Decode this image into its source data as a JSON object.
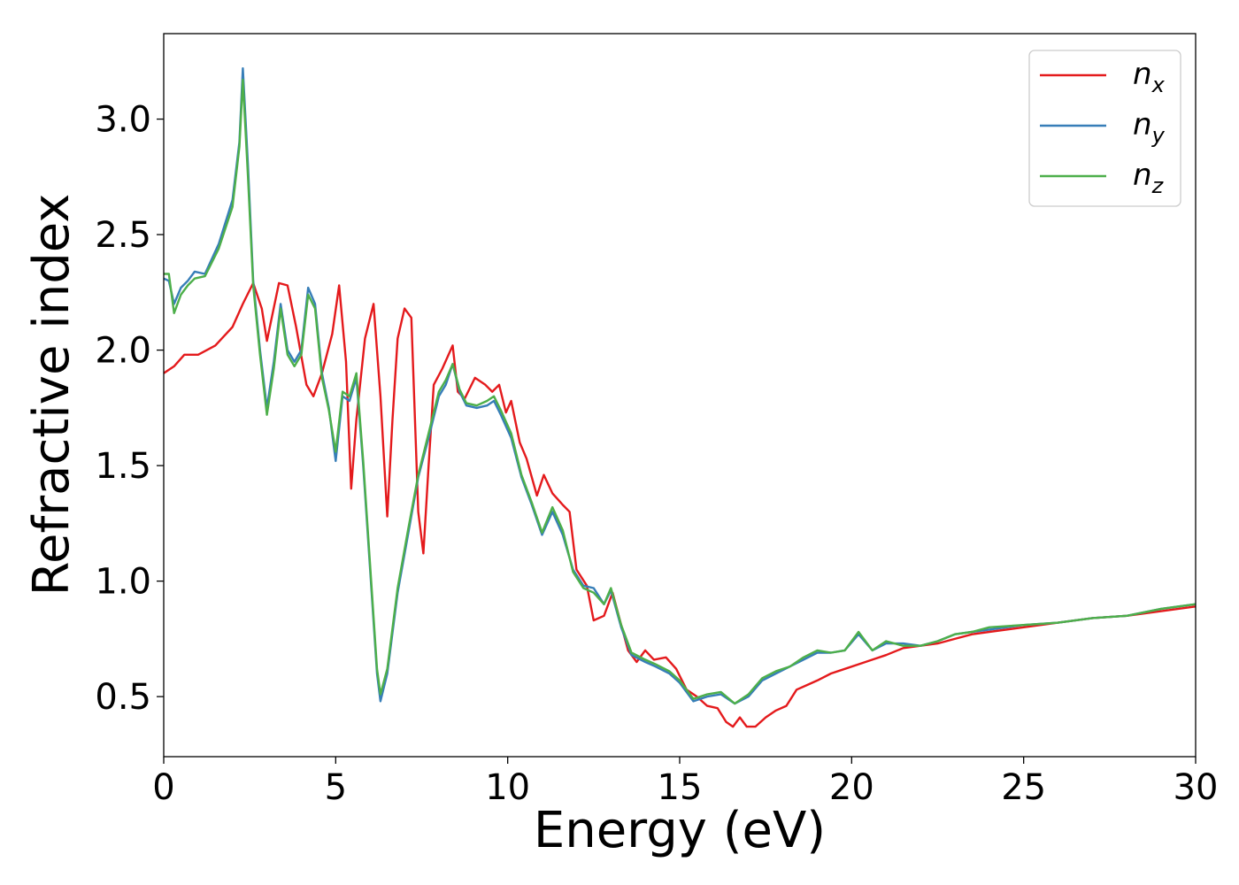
{
  "chart_data": {
    "type": "line",
    "title": "",
    "xlabel": "Energy (eV)",
    "ylabel": "Refractive index",
    "xlim": [
      0,
      30
    ],
    "ylim": [
      0.24,
      3.37
    ],
    "xticks": [
      0,
      5,
      10,
      15,
      20,
      25,
      30
    ],
    "xtick_labels": [
      "0",
      "5",
      "10",
      "15",
      "20",
      "25",
      "30"
    ],
    "yticks": [
      0.5,
      1.0,
      1.5,
      2.0,
      2.5,
      3.0
    ],
    "ytick_labels": [
      "0.5",
      "1.0",
      "1.5",
      "2.0",
      "2.5",
      "3.0"
    ],
    "grid": false,
    "legend_position": "top-right",
    "series": [
      {
        "name": "n_x",
        "legend_base": "n",
        "legend_sub": "x",
        "color": "#e41a1c",
        "x": [
          0,
          0.3,
          0.6,
          1.0,
          1.5,
          2.0,
          2.3,
          2.6,
          2.85,
          3.0,
          3.35,
          3.6,
          3.85,
          4.15,
          4.35,
          4.6,
          4.9,
          5.1,
          5.3,
          5.45,
          5.6,
          5.85,
          6.1,
          6.3,
          6.5,
          6.65,
          6.8,
          7.0,
          7.2,
          7.4,
          7.55,
          7.7,
          7.85,
          8.1,
          8.4,
          8.55,
          8.75,
          9.05,
          9.35,
          9.55,
          9.75,
          9.95,
          10.1,
          10.35,
          10.55,
          10.85,
          11.05,
          11.3,
          11.6,
          11.8,
          12.0,
          12.3,
          12.5,
          12.8,
          13.05,
          13.3,
          13.5,
          13.75,
          14.0,
          14.25,
          14.6,
          14.9,
          15.2,
          15.5,
          15.8,
          16.1,
          16.35,
          16.55,
          16.75,
          16.95,
          17.2,
          17.5,
          17.8,
          18.1,
          18.4,
          18.7,
          19.0,
          19.4,
          19.8,
          20.2,
          20.6,
          21.0,
          21.5,
          22.0,
          22.5,
          23.0,
          23.5,
          24.0,
          25.0,
          26.0,
          27.0,
          28.0,
          29.0,
          30.0
        ],
        "y": [
          1.9,
          1.93,
          1.98,
          1.98,
          2.02,
          2.1,
          2.2,
          2.29,
          2.18,
          2.04,
          2.29,
          2.28,
          2.1,
          1.85,
          1.8,
          1.9,
          2.07,
          2.28,
          1.95,
          1.4,
          1.7,
          2.05,
          2.2,
          1.8,
          1.28,
          1.7,
          2.05,
          2.18,
          2.14,
          1.3,
          1.12,
          1.5,
          1.85,
          1.92,
          2.02,
          1.82,
          1.79,
          1.88,
          1.85,
          1.82,
          1.85,
          1.73,
          1.78,
          1.6,
          1.53,
          1.37,
          1.46,
          1.38,
          1.33,
          1.3,
          1.05,
          0.98,
          0.83,
          0.85,
          0.95,
          0.81,
          0.7,
          0.65,
          0.7,
          0.66,
          0.67,
          0.62,
          0.53,
          0.5,
          0.46,
          0.45,
          0.39,
          0.37,
          0.41,
          0.37,
          0.37,
          0.41,
          0.44,
          0.46,
          0.53,
          0.55,
          0.57,
          0.6,
          0.62,
          0.64,
          0.66,
          0.68,
          0.71,
          0.72,
          0.73,
          0.75,
          0.77,
          0.78,
          0.8,
          0.82,
          0.84,
          0.85,
          0.87,
          0.89
        ]
      },
      {
        "name": "n_y",
        "legend_base": "n",
        "legend_sub": "y",
        "color": "#377eb8",
        "x": [
          0,
          0.15,
          0.3,
          0.5,
          0.7,
          0.9,
          1.2,
          1.6,
          2.0,
          2.2,
          2.3,
          2.45,
          2.6,
          2.8,
          3.0,
          3.2,
          3.4,
          3.6,
          3.8,
          4.0,
          4.2,
          4.4,
          4.6,
          4.8,
          5.0,
          5.2,
          5.4,
          5.6,
          5.8,
          6.0,
          6.2,
          6.3,
          6.5,
          6.8,
          7.1,
          7.4,
          7.7,
          8.0,
          8.2,
          8.4,
          8.6,
          8.8,
          9.1,
          9.4,
          9.6,
          9.8,
          10.1,
          10.4,
          10.7,
          11.0,
          11.3,
          11.6,
          11.9,
          12.2,
          12.5,
          12.8,
          13.0,
          13.3,
          13.6,
          14.0,
          14.3,
          14.7,
          15.0,
          15.4,
          15.8,
          16.2,
          16.6,
          17.0,
          17.4,
          17.8,
          18.2,
          18.6,
          19.0,
          19.4,
          19.8,
          20.2,
          20.6,
          21.0,
          21.5,
          22.0,
          22.5,
          23.0,
          23.5,
          24.0,
          25.0,
          26.0,
          27.0,
          28.0,
          29.0,
          30.0
        ],
        "y": [
          2.31,
          2.3,
          2.2,
          2.27,
          2.3,
          2.34,
          2.33,
          2.46,
          2.65,
          2.9,
          3.22,
          2.8,
          2.3,
          2.0,
          1.75,
          1.95,
          2.2,
          2.0,
          1.95,
          2.0,
          2.27,
          2.2,
          1.9,
          1.75,
          1.52,
          1.8,
          1.78,
          1.88,
          1.5,
          1.05,
          0.6,
          0.48,
          0.6,
          0.95,
          1.2,
          1.45,
          1.62,
          1.8,
          1.85,
          1.94,
          1.82,
          1.76,
          1.75,
          1.76,
          1.78,
          1.72,
          1.62,
          1.45,
          1.33,
          1.2,
          1.3,
          1.2,
          1.05,
          0.98,
          0.97,
          0.9,
          0.96,
          0.8,
          0.68,
          0.65,
          0.63,
          0.6,
          0.56,
          0.48,
          0.5,
          0.51,
          0.47,
          0.5,
          0.57,
          0.6,
          0.63,
          0.66,
          0.69,
          0.69,
          0.7,
          0.77,
          0.7,
          0.73,
          0.73,
          0.72,
          0.74,
          0.77,
          0.78,
          0.79,
          0.81,
          0.82,
          0.84,
          0.85,
          0.88,
          0.9
        ]
      },
      {
        "name": "n_z",
        "legend_base": "n",
        "legend_sub": "z",
        "color": "#4daf4a",
        "x": [
          0,
          0.15,
          0.3,
          0.5,
          0.7,
          0.9,
          1.2,
          1.6,
          2.0,
          2.2,
          2.3,
          2.45,
          2.6,
          2.8,
          3.0,
          3.2,
          3.4,
          3.6,
          3.8,
          4.0,
          4.2,
          4.4,
          4.6,
          4.8,
          5.0,
          5.2,
          5.4,
          5.6,
          5.8,
          6.0,
          6.2,
          6.3,
          6.5,
          6.8,
          7.1,
          7.4,
          7.7,
          8.0,
          8.2,
          8.4,
          8.6,
          8.8,
          9.1,
          9.4,
          9.6,
          9.8,
          10.1,
          10.4,
          10.7,
          11.0,
          11.3,
          11.6,
          11.9,
          12.2,
          12.5,
          12.8,
          13.0,
          13.3,
          13.6,
          14.0,
          14.3,
          14.7,
          15.0,
          15.4,
          15.8,
          16.2,
          16.6,
          17.0,
          17.4,
          17.8,
          18.2,
          18.6,
          19.0,
          19.4,
          19.8,
          20.2,
          20.6,
          21.0,
          21.5,
          22.0,
          22.5,
          23.0,
          23.5,
          24.0,
          25.0,
          26.0,
          27.0,
          28.0,
          29.0,
          30.0
        ],
        "y": [
          2.33,
          2.33,
          2.16,
          2.24,
          2.28,
          2.31,
          2.32,
          2.44,
          2.62,
          2.88,
          3.17,
          2.75,
          2.28,
          1.98,
          1.72,
          1.92,
          2.18,
          1.98,
          1.93,
          1.98,
          2.24,
          2.18,
          1.88,
          1.74,
          1.56,
          1.82,
          1.8,
          1.9,
          1.52,
          1.07,
          0.62,
          0.51,
          0.62,
          0.97,
          1.22,
          1.46,
          1.64,
          1.82,
          1.87,
          1.94,
          1.83,
          1.77,
          1.76,
          1.78,
          1.8,
          1.74,
          1.64,
          1.46,
          1.34,
          1.21,
          1.32,
          1.22,
          1.04,
          0.97,
          0.95,
          0.9,
          0.97,
          0.81,
          0.69,
          0.66,
          0.64,
          0.61,
          0.57,
          0.49,
          0.51,
          0.52,
          0.47,
          0.51,
          0.58,
          0.61,
          0.63,
          0.67,
          0.7,
          0.69,
          0.7,
          0.78,
          0.7,
          0.74,
          0.72,
          0.72,
          0.74,
          0.77,
          0.78,
          0.8,
          0.81,
          0.82,
          0.84,
          0.85,
          0.88,
          0.9
        ]
      }
    ]
  }
}
